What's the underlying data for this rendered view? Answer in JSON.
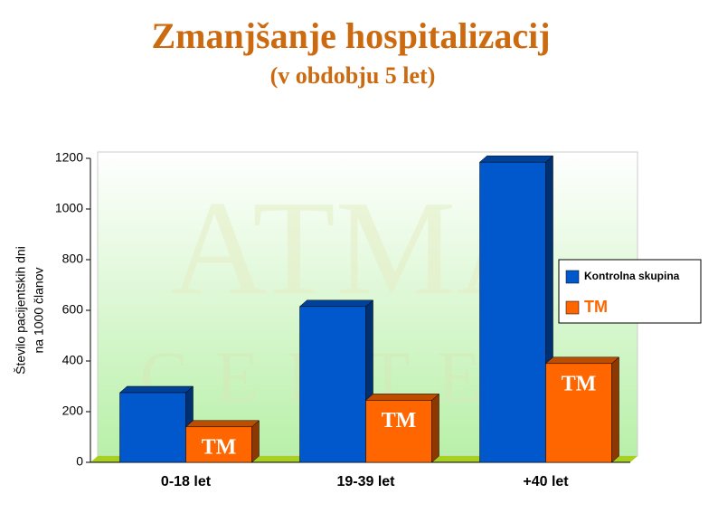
{
  "chart_data": {
    "type": "bar3d",
    "title": "Zmanjšanje hospitalizacij",
    "subtitle": "(v obdobju 5 let)",
    "watermark": [
      "ATMA",
      "CENTER"
    ],
    "ylabel": [
      "Število pacijentskih dni",
      "na 1000 članov"
    ],
    "categories": [
      "0-18 let",
      "19-39 let",
      "+40 let"
    ],
    "series": [
      {
        "name": "Kontrolna skupina",
        "color": "#0058cc",
        "values": [
          275,
          615,
          1185
        ]
      },
      {
        "name": "TM",
        "color": "#ff6600",
        "values": [
          140,
          245,
          390
        ]
      }
    ],
    "ylim": [
      0,
      1200
    ],
    "yticks": [
      0,
      200,
      400,
      600,
      800,
      1000,
      1200
    ],
    "legend": "right"
  }
}
